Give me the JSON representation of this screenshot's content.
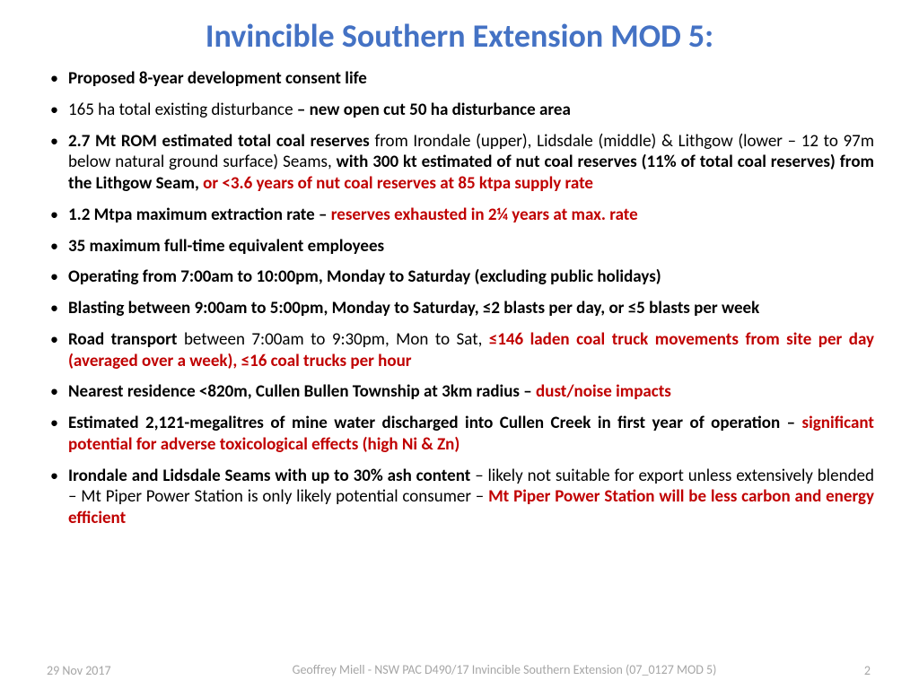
{
  "title": {
    "text": "Invincible Southern Extension MOD 5:",
    "color": "#4472c4",
    "fontsize": 36
  },
  "body": {
    "fontsize": 19,
    "color_default": "#000000",
    "color_highlight": "#c00000"
  },
  "bullets": [
    {
      "spans": [
        {
          "t": "Proposed 8-year development consent life",
          "b": true
        }
      ]
    },
    {
      "spans": [
        {
          "t": "165 ha total existing disturbance "
        },
        {
          "t": "– new open cut 50 ha disturbance area",
          "b": true
        }
      ]
    },
    {
      "spans": [
        {
          "t": "2.7 Mt ROM estimated total coal reserves ",
          "b": true
        },
        {
          "t": "from Irondale (upper), Lidsdale (middle) & Lithgow (lower – 12 to 97m below natural ground surface) Seams, "
        },
        {
          "t": "with 300 kt estimated of nut coal reserves (11% of total coal reserves) from the Lithgow Seam, ",
          "b": true
        },
        {
          "t": "or <3.6 years of nut coal reserves at 85 ktpa supply rate",
          "r": true
        }
      ]
    },
    {
      "spans": [
        {
          "t": "1.2 Mtpa maximum extraction rate – ",
          "b": true
        },
        {
          "t": "reserves exhausted in 2¼ years at max. rate",
          "r": true
        }
      ]
    },
    {
      "spans": [
        {
          "t": "35 maximum full-time equivalent employees",
          "b": true
        }
      ]
    },
    {
      "spans": [
        {
          "t": "Operating from 7:00am to 10:00pm, Monday to Saturday (excluding public holidays)",
          "b": true
        }
      ]
    },
    {
      "spans": [
        {
          "t": "Blasting between 9:00am to 5:00pm, Monday to Saturday, ≤2 blasts per day, or ≤5 blasts per week",
          "b": true
        }
      ]
    },
    {
      "spans": [
        {
          "t": "Road transport ",
          "b": true
        },
        {
          "t": "between 7:00am to 9:30pm, Mon to Sat, "
        },
        {
          "t": "≤146 laden coal truck movements from site per day (averaged over a week), ≤16 coal trucks per hour",
          "r": true
        }
      ]
    },
    {
      "spans": [
        {
          "t": "Nearest residence <820m, Cullen Bullen Township at 3km radius – ",
          "b": true
        },
        {
          "t": "dust/noise impacts",
          "r": true
        }
      ]
    },
    {
      "spans": [
        {
          "t": "Estimated 2,121-megalitres of mine water discharged into Cullen Creek in first year of operation – ",
          "b": true
        },
        {
          "t": "significant potential for adverse toxicological effects (high Ni & Zn)",
          "r": true
        }
      ]
    },
    {
      "spans": [
        {
          "t": "Irondale and Lidsdale Seams with up to 30% ash content ",
          "b": true
        },
        {
          "t": "– likely not suitable for export unless extensively blended – Mt Piper Power Station is only likely potential consumer – "
        },
        {
          "t": "Mt Piper Power Station will be less carbon and energy efficient",
          "r": true
        }
      ]
    }
  ],
  "footer": {
    "date": "29 Nov 2017",
    "center": "Geoffrey Miell - NSW PAC D490/17 Invincible Southern Extension (07_0127 MOD 5)",
    "page": "2",
    "color": "#a6a6a6"
  }
}
